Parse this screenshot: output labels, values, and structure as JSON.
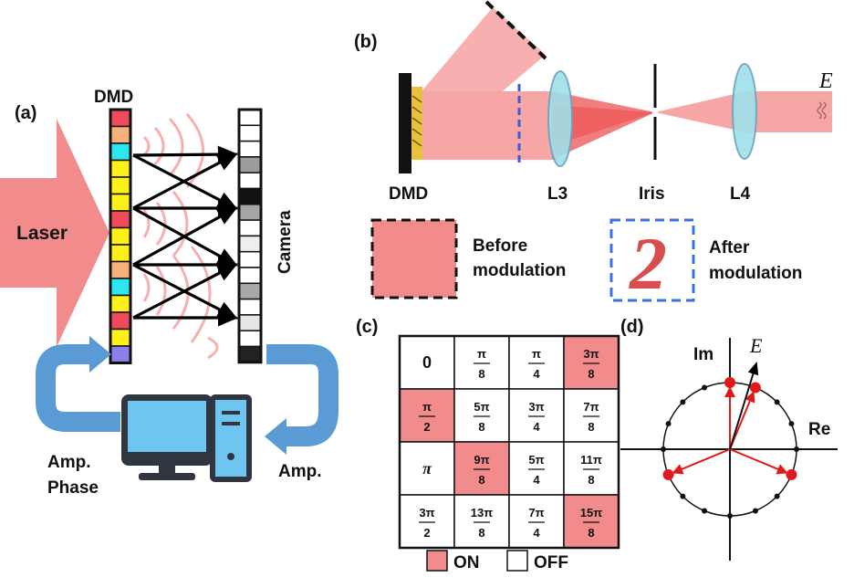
{
  "panels": {
    "a": {
      "label": "(a)",
      "dmd_label": "DMD",
      "laser_label": "Laser",
      "camera_label": "Camera",
      "amp_phase_line1": "Amp.",
      "amp_phase_line2": "Phase",
      "amp_label": "Amp.",
      "dmd_pixel_colors": [
        "#ef4a5a",
        "#f6b07a",
        "#2ee6f0",
        "#ffef1a",
        "#ffef1a",
        "#ffef1a",
        "#ef4a5a",
        "#ffef1a",
        "#ffef1a",
        "#f6b07a",
        "#2ee6f0",
        "#ffef1a",
        "#ef4a5a",
        "#ffef1a",
        "#8a80e8"
      ],
      "camera_pixel_colors": [
        "#ffffff",
        "#ffffff",
        "#ffffff",
        "#9c9c9c",
        "#ffffff",
        "#111111",
        "#a6a6a6",
        "#ffffff",
        "#eeeeee",
        "#ffffff",
        "#ffffff",
        "#a8a8a8",
        "#ffffff",
        "#e6e6e6",
        "#ffffff",
        "#222222"
      ]
    },
    "b": {
      "label": "(b)",
      "dmd_label": "DMD",
      "l3_label": "L3",
      "iris_label": "Iris",
      "l4_label": "L4",
      "field_symbol": "E",
      "before_line1": "Before",
      "before_line2": "modulation",
      "after_line1": "After",
      "after_line2": "modulation",
      "after_glyph": "2"
    },
    "c": {
      "label": "(c)",
      "legend_on": "ON",
      "legend_off": "OFF",
      "on_color": "#f28b8b",
      "grid": [
        [
          {
            "n": "0",
            "d": "",
            "on": false
          },
          {
            "n": "π",
            "d": "8",
            "on": false
          },
          {
            "n": "π",
            "d": "4",
            "on": false
          },
          {
            "n": "3π",
            "d": "8",
            "on": true
          }
        ],
        [
          {
            "n": "π",
            "d": "2",
            "on": true
          },
          {
            "n": "5π",
            "d": "8",
            "on": false
          },
          {
            "n": "3π",
            "d": "4",
            "on": false
          },
          {
            "n": "7π",
            "d": "8",
            "on": false
          }
        ],
        [
          {
            "n": "π",
            "d": "",
            "on": false
          },
          {
            "n": "9π",
            "d": "8",
            "on": true
          },
          {
            "n": "5π",
            "d": "4",
            "on": false
          },
          {
            "n": "11π",
            "d": "8",
            "on": false
          }
        ],
        [
          {
            "n": "3π",
            "d": "2",
            "on": false
          },
          {
            "n": "13π",
            "d": "8",
            "on": false
          },
          {
            "n": "7π",
            "d": "4",
            "on": false
          },
          {
            "n": "15π",
            "d": "8",
            "on": true
          }
        ]
      ]
    },
    "d": {
      "label": "(d)",
      "im_label": "Im",
      "re_label": "Re",
      "field_symbol": "E",
      "on_phase_steps": [
        3,
        4,
        9,
        15
      ],
      "total_steps": 16
    }
  }
}
